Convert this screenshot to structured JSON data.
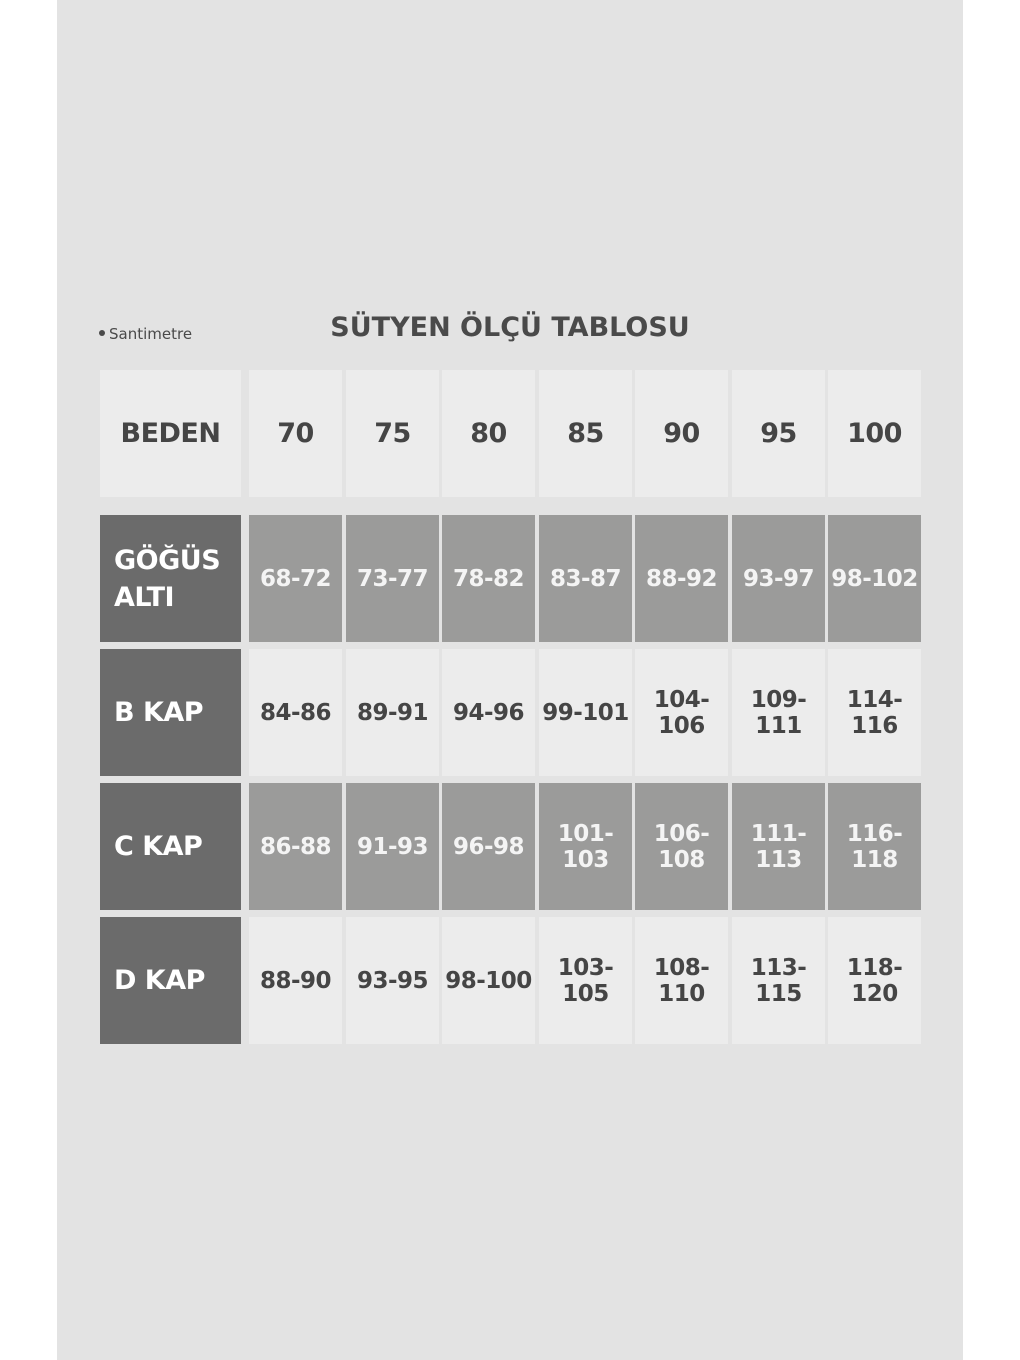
{
  "unit_label": "Santimetre",
  "title": "SÜTYEN ÖLÇÜ TABLOSU",
  "colors": {
    "background": "#e3e3e3",
    "light_cell": "#ececec",
    "mid_cell": "#9b9b9a",
    "label_cell": "#6b6b6b",
    "text": "#454545"
  },
  "table": {
    "header_label": "BEDEN",
    "sizes": [
      "70",
      "75",
      "80",
      "85",
      "90",
      "95",
      "100"
    ],
    "rows": [
      {
        "label": "GÖĞÜS ALTI",
        "values": [
          "68-72",
          "73-77",
          "78-82",
          "83-87",
          "88-92",
          "93-97",
          "98-102"
        ]
      },
      {
        "label": "B KAP",
        "values": [
          "84-86",
          "89-91",
          "94-96",
          "99-101",
          "104-106",
          "109-111",
          "114-116"
        ]
      },
      {
        "label": "C KAP",
        "values": [
          "86-88",
          "91-93",
          "96-98",
          "101-103",
          "106-108",
          "111-113",
          "116-118"
        ]
      },
      {
        "label": "D KAP",
        "values": [
          "88-90",
          "93-95",
          "98-100",
          "103-105",
          "108-110",
          "113-115",
          "118-120"
        ]
      }
    ]
  }
}
